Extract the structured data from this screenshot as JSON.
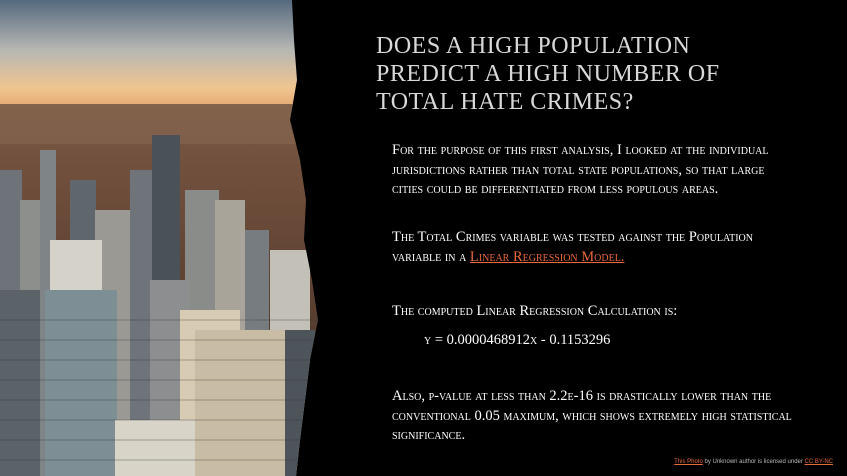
{
  "slide": {
    "title": "Does a high population predict a high number of total hate crimes?",
    "paragraph_1": "For the purpose of this first analysis, I looked at the individual jurisdictions rather than total state populations, so that large cities could be differentiated from less populous areas.",
    "paragraph_2_prefix": "The Total Crimes variable was tested against the Population variable in a ",
    "paragraph_2_link": "Linear Regression Model.",
    "paragraph_3": "The computed Linear Regression Calculation is:",
    "equation": "y = 0.0000468912x - 0.1153296",
    "paragraph_4": "Also, p-value at less than 2.2e-16 is drastically lower than the conventional 0.05 maximum, which shows extremely high statistical significance.",
    "caption": {
      "link_photo": "This Photo",
      "middle": " by Unknown author is licensed under ",
      "link_license": "CC BY-NC"
    }
  },
  "colors": {
    "background": "#000000",
    "title": "#d9d9d9",
    "body": "#ffffff",
    "link": "#e8693c"
  },
  "photo": {
    "subject": "city skyline aerial photograph"
  }
}
